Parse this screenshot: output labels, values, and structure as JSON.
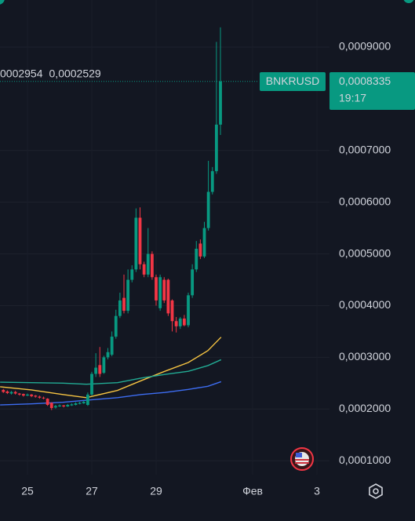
{
  "chart_data": {
    "type": "candlestick",
    "symbol": "BNKRUSD",
    "last_price": {
      "value": 0.0008335,
      "label": "0,0008335"
    },
    "countdown": "19:17",
    "up_color": "#089981",
    "down_color": "#f23645",
    "x": [
      24.25,
      24.375,
      24.5,
      24.625,
      24.75,
      24.875,
      25,
      25.125,
      25.25,
      25.375,
      25.5,
      25.625,
      25.75,
      25.875,
      26,
      26.125,
      26.25,
      26.375,
      26.5,
      26.625,
      26.75,
      26.875,
      27,
      27.125,
      27.25,
      27.375,
      27.5,
      27.625,
      27.75,
      27.875,
      28,
      28.125,
      28.25,
      28.375,
      28.5,
      28.625,
      28.75,
      28.875,
      29,
      29.125,
      29.25,
      29.375,
      29.5,
      29.625,
      29.75,
      29.875,
      30,
      30.125,
      30.25,
      30.375,
      30.5,
      30.625,
      30.75,
      30.875,
      31
    ],
    "open": [
      0.000237,
      0.000234,
      0.00023,
      0.000233,
      0.00023,
      0.000229,
      0.000226,
      0.000228,
      0.000226,
      0.000224,
      0.000222,
      0.00022,
      0.000212,
      0.000203,
      0.000205,
      0.000207,
      0.000205,
      0.000207,
      0.000208,
      0.00021,
      0.000211,
      0.000208,
      0.000228,
      0.000268,
      0.000285,
      0.00027,
      0.0003,
      0.000305,
      0.00034,
      0.00038,
      0.000415,
      0.00039,
      0.00045,
      0.00047,
      0.00057,
      0.00048,
      0.00046,
      0.0005,
      0.000455,
      0.000395,
      0.00045,
      0.00045,
      0.00041,
      0.00037,
      0.00036,
      0.000375,
      0.000362,
      0.00042,
      0.00047,
      0.00052,
      0.000495,
      0.00055,
      0.00062,
      0.00066,
      0.00075
    ],
    "high": [
      0.000239,
      0.000236,
      0.000235,
      0.000235,
      0.000231,
      0.00023,
      0.00023,
      0.000229,
      0.000227,
      0.000226,
      0.000224,
      0.000221,
      0.000213,
      0.000208,
      0.000209,
      0.000208,
      0.00021,
      0.000211,
      0.000213,
      0.000214,
      0.000216,
      0.000232,
      0.000272,
      0.000308,
      0.00032,
      0.000303,
      0.000318,
      0.00035,
      0.000392,
      0.000425,
      0.00046,
      0.00047,
      0.000478,
      0.000588,
      0.00059,
      0.000485,
      0.00055,
      0.000505,
      0.00046,
      0.00046,
      0.000455,
      0.000452,
      0.000412,
      0.000378,
      0.000378,
      0.000382,
      0.000425,
      0.00048,
      0.000525,
      0.000528,
      0.000562,
      0.00068,
      0.000668,
      0.00091,
      0.000938
    ],
    "low": [
      0.000231,
      0.000229,
      0.000228,
      0.000228,
      0.000226,
      0.000224,
      0.000225,
      0.000223,
      0.000222,
      0.00022,
      0.000219,
      0.000206,
      0.000198,
      0.000201,
      0.000204,
      0.000203,
      0.000204,
      0.000206,
      0.000207,
      0.000209,
      0.00021,
      0.000206,
      0.000226,
      0.000262,
      0.000262,
      0.000268,
      0.000296,
      0.000302,
      0.000336,
      0.000376,
      0.000385,
      0.000385,
      0.000445,
      0.000465,
      0.00047,
      0.000455,
      0.000455,
      0.00045,
      0.0004,
      0.00039,
      0.000405,
      0.00038,
      0.00035,
      0.000348,
      0.000355,
      0.00036,
      0.000358,
      0.000415,
      0.000465,
      0.00049,
      0.000492,
      0.000545,
      0.000615,
      0.000655,
      0.00073
    ],
    "close": [
      0.000233,
      0.000231,
      0.000233,
      0.00023,
      0.000228,
      0.000226,
      0.000228,
      0.000225,
      0.000224,
      0.000222,
      0.000221,
      0.000208,
      0.000202,
      0.000206,
      0.000207,
      0.000205,
      0.000208,
      0.000209,
      0.000211,
      0.000212,
      0.000214,
      0.000228,
      0.000268,
      0.00028,
      0.000268,
      0.0003,
      0.00031,
      0.00034,
      0.00038,
      0.00041,
      0.00039,
      0.00045,
      0.00047,
      0.00057,
      0.00048,
      0.00046,
      0.0005,
      0.000455,
      0.00041,
      0.000455,
      0.00041,
      0.000385,
      0.00037,
      0.00036,
      0.000375,
      0.000362,
      0.00042,
      0.00047,
      0.00051,
      0.000495,
      0.00055,
      0.00062,
      0.00066,
      0.00075,
      0.0008335
    ],
    "series": [
      {
        "color": "#f5c342",
        "x": [
          24.15,
          25.12,
          26.1,
          26.83,
          27.8,
          28.54,
          29.27,
          30.0,
          30.61,
          31.02
        ],
        "values": [
          0.000243,
          0.000237,
          0.000228,
          0.000222,
          0.000236,
          0.000255,
          0.000273,
          0.00029,
          0.000313,
          0.000339
        ]
      },
      {
        "color": "#22ab94",
        "legend_value": "0002954",
        "x": [
          24.15,
          25.12,
          26.1,
          26.83,
          27.8,
          28.54,
          29.27,
          30.0,
          30.61,
          31.02
        ],
        "values": [
          0.000252,
          0.000251,
          0.00025,
          0.000248,
          0.000251,
          0.00026,
          0.000267,
          0.000273,
          0.000284,
          0.0002954
        ]
      },
      {
        "color": "#3d6df2",
        "legend_value": "0,0002529",
        "x": [
          24.15,
          25.12,
          26.1,
          26.83,
          27.8,
          28.54,
          29.27,
          30.0,
          30.61,
          31.02
        ],
        "values": [
          0.000208,
          0.00021,
          0.000213,
          0.000217,
          0.000222,
          0.000228,
          0.000232,
          0.000238,
          0.000244,
          0.0002529
        ]
      }
    ],
    "xlim": [
      24.146,
      34.39
    ],
    "xticks": [
      25,
      27,
      29,
      {
        "value": 32,
        "label": "Фев"
      },
      {
        "value": 34,
        "label": "3"
      }
    ],
    "ylim": [
      7.3e-05,
      0.000991
    ],
    "yticks": [
      {
        "value": 0.0001,
        "label": "0,0001000"
      },
      {
        "value": 0.0002,
        "label": "0,0002000"
      },
      {
        "value": 0.0003,
        "label": "0,0003000"
      },
      {
        "value": 0.0004,
        "label": "0,0004000"
      },
      {
        "value": 0.0005,
        "label": "0,0005000"
      },
      {
        "value": 0.0006,
        "label": "0,0006000"
      },
      {
        "value": 0.0007,
        "label": "0,0007000"
      },
      {
        "value": 0.0009,
        "label": "0,0009000"
      }
    ],
    "grid": true
  }
}
